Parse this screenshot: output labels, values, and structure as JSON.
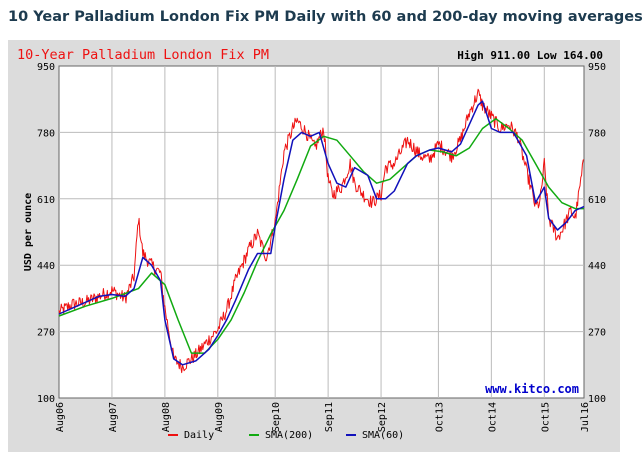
{
  "page_title": "10 Year Palladium London Fix PM Daily with 60 and 200-day moving averages",
  "chart_data": {
    "type": "line",
    "title": "10-Year Palladium London Fix PM",
    "high_low": "High 911.00 Low 164.00",
    "ylabel": "USD per ounce",
    "ylim": [
      100,
      950
    ],
    "yticks": [
      "950",
      "780",
      "610",
      "440",
      "270",
      "100"
    ],
    "xticks": [
      "Aug06",
      "Aug07",
      "Aug08",
      "Aug09",
      "Sep10",
      "Sep11",
      "Sep12",
      "Oct13",
      "Oct14",
      "Oct15",
      "Jul16"
    ],
    "watermark": "www.kitco.com",
    "grid": true,
    "legend_position": "bottom",
    "series": [
      {
        "name": "Daily",
        "color": "#ee1111",
        "x": [
          "Aug06",
          "Nov06",
          "Feb07",
          "May07",
          "Aug07",
          "Nov07",
          "Jan08",
          "Feb08",
          "Mar08",
          "May08",
          "Jul08",
          "Aug08",
          "Oct08",
          "Dec08",
          "Mar09",
          "Jun09",
          "Aug09",
          "Oct09",
          "Dec09",
          "Mar10",
          "May10",
          "Jul10",
          "Sep10",
          "Nov10",
          "Jan11",
          "Feb11",
          "Apr11",
          "Jun11",
          "Aug11",
          "Sep11",
          "Oct11",
          "Dec11",
          "Feb12",
          "Mar12",
          "May12",
          "Jul12",
          "Sep12",
          "Oct12",
          "Dec12",
          "Feb13",
          "Mar13",
          "Jun13",
          "Aug13",
          "Oct13",
          "Jan14",
          "Mar14",
          "May14",
          "Jul14",
          "Aug14",
          "Oct14",
          "Dec14",
          "Feb15",
          "Apr15",
          "Jun15",
          "Aug15",
          "Sep15",
          "Oct15",
          "Nov15",
          "Jan16",
          "Feb16",
          "Apr16",
          "May16",
          "Jul16"
        ],
        "values": [
          320,
          340,
          345,
          360,
          375,
          355,
          410,
          560,
          470,
          440,
          420,
          330,
          200,
          180,
          210,
          250,
          275,
          325,
          400,
          480,
          520,
          460,
          550,
          730,
          790,
          810,
          780,
          740,
          790,
          660,
          620,
          640,
          700,
          650,
          620,
          600,
          620,
          690,
          700,
          740,
          760,
          720,
          710,
          750,
          720,
          760,
          830,
          880,
          850,
          820,
          790,
          800,
          770,
          680,
          590,
          600,
          700,
          560,
          510,
          530,
          580,
          560,
          710
        ]
      },
      {
        "name": "SMA(200)",
        "color": "#11aa11",
        "x": [
          "Aug06",
          "Feb07",
          "Aug07",
          "Feb08",
          "May08",
          "Aug08",
          "Nov08",
          "Feb09",
          "May09",
          "Aug09",
          "Nov09",
          "Feb10",
          "May10",
          "Aug10",
          "Nov10",
          "Feb11",
          "May11",
          "Aug11",
          "Nov11",
          "Feb12",
          "May12",
          "Aug12",
          "Nov12",
          "Feb13",
          "May13",
          "Aug13",
          "Nov13",
          "Feb14",
          "May14",
          "Aug14",
          "Nov14",
          "Feb15",
          "May15",
          "Aug15",
          "Nov15",
          "Feb16",
          "May16",
          "Jul16"
        ],
        "values": [
          310,
          335,
          355,
          380,
          420,
          390,
          300,
          215,
          215,
          250,
          300,
          370,
          450,
          520,
          580,
          660,
          745,
          770,
          760,
          720,
          680,
          650,
          660,
          690,
          720,
          735,
          730,
          720,
          740,
          790,
          815,
          790,
          760,
          700,
          640,
          600,
          585,
          585
        ]
      },
      {
        "name": "SMA(60)",
        "color": "#1111bb",
        "x": [
          "Aug06",
          "Nov06",
          "Feb07",
          "May07",
          "Aug07",
          "Nov07",
          "Jan08",
          "Mar08",
          "May08",
          "Jul08",
          "Aug08",
          "Oct08",
          "Dec08",
          "Mar09",
          "Jun09",
          "Aug09",
          "Oct09",
          "Dec09",
          "Mar10",
          "May10",
          "Aug10",
          "Sep10",
          "Nov10",
          "Jan11",
          "Mar11",
          "May11",
          "Jul11",
          "Sep11",
          "Nov11",
          "Jan12",
          "Mar12",
          "Jun12",
          "Aug12",
          "Oct12",
          "Dec12",
          "Mar13",
          "May13",
          "Aug13",
          "Oct13",
          "Jan14",
          "Mar14",
          "May14",
          "Jul14",
          "Aug14",
          "Oct14",
          "Dec14",
          "Mar15",
          "Jun15",
          "Aug15",
          "Oct15",
          "Nov15",
          "Jan16",
          "Mar16",
          "May16",
          "Jul16"
        ],
        "values": [
          315,
          330,
          345,
          360,
          365,
          360,
          380,
          460,
          440,
          400,
          300,
          200,
          185,
          195,
          225,
          260,
          300,
          350,
          430,
          470,
          470,
          540,
          660,
          760,
          780,
          770,
          780,
          700,
          650,
          640,
          690,
          670,
          610,
          610,
          630,
          700,
          720,
          735,
          740,
          730,
          750,
          800,
          850,
          860,
          790,
          780,
          780,
          720,
          600,
          640,
          560,
          530,
          550,
          580,
          590
        ]
      }
    ]
  }
}
